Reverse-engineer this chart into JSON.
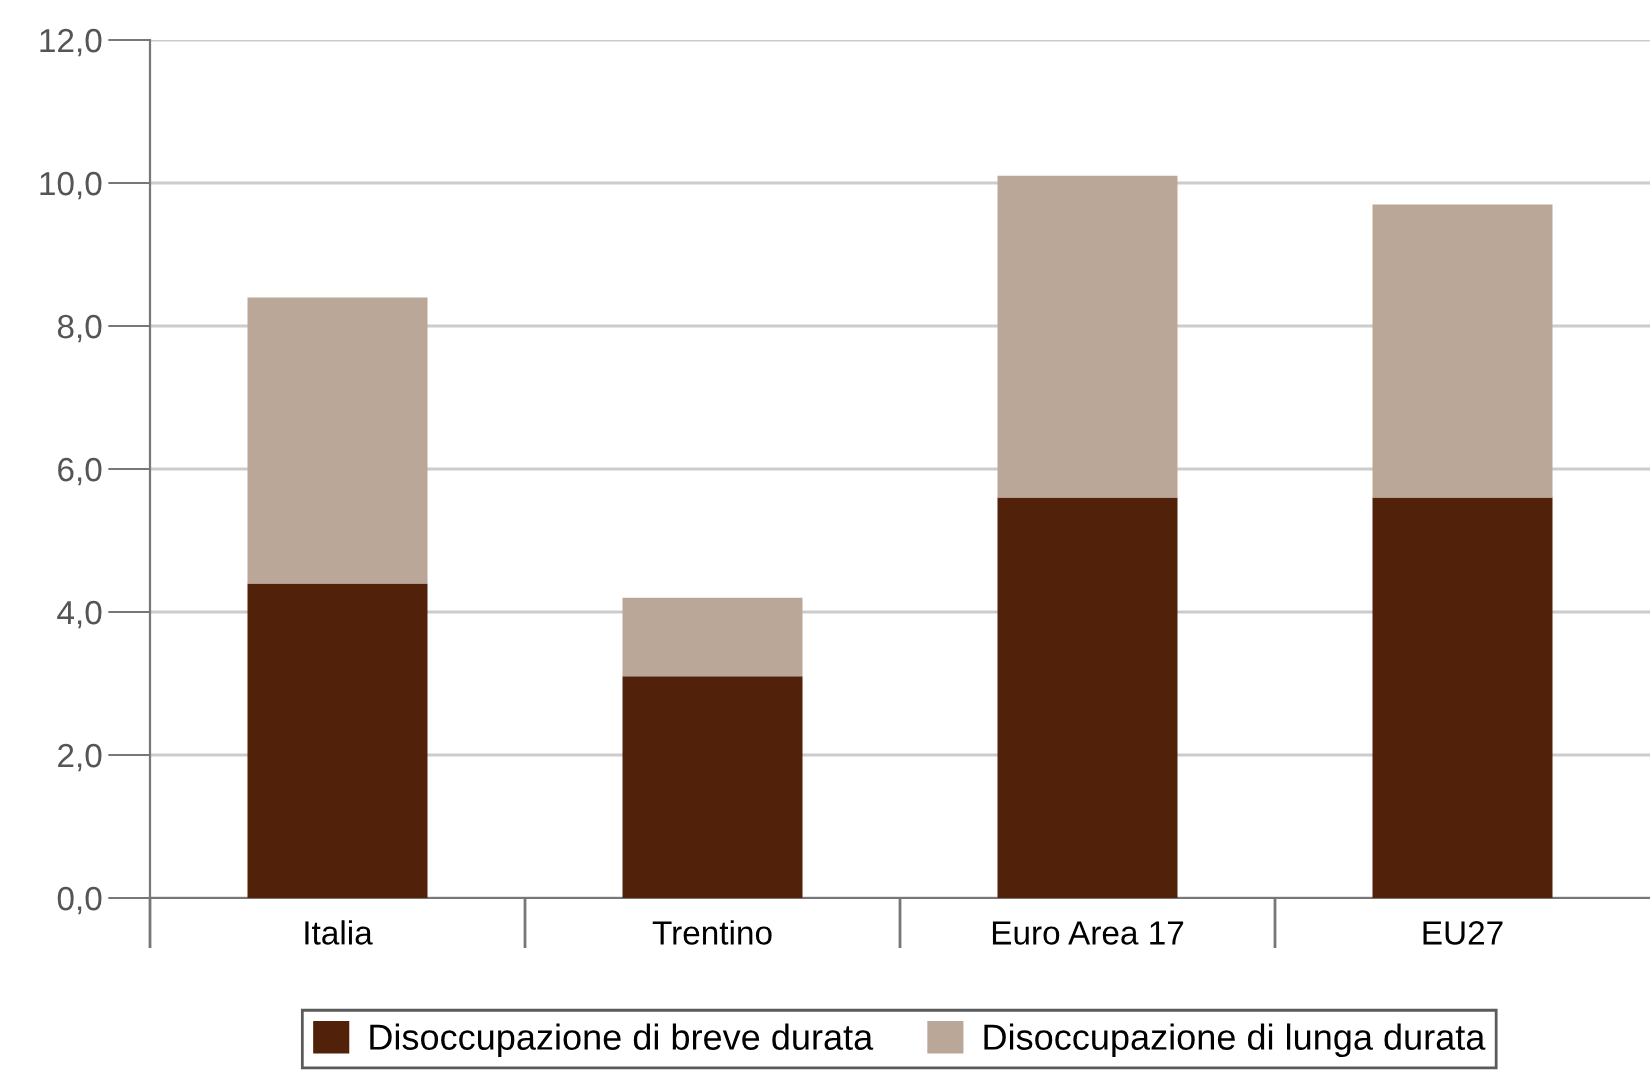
{
  "chart_data": {
    "type": "bar",
    "stacked": true,
    "categories": [
      "Italia",
      "Trentino",
      "Euro Area 17",
      "EU27"
    ],
    "series": [
      {
        "name": "Disoccupazione di breve durata",
        "color": "#52210a",
        "values": [
          4.4,
          3.1,
          5.6,
          5.6
        ]
      },
      {
        "name": "Disoccupazione di lunga durata",
        "color": "#baa798",
        "values": [
          4.0,
          1.1,
          4.5,
          4.1
        ]
      }
    ],
    "ylim": [
      0,
      12
    ],
    "yticks": [
      {
        "value": 0,
        "label": "0,0"
      },
      {
        "value": 2,
        "label": "2,0"
      },
      {
        "value": 4,
        "label": "4,0"
      },
      {
        "value": 6,
        "label": "6,0"
      },
      {
        "value": 8,
        "label": "8,0"
      },
      {
        "value": 10,
        "label": "10,0"
      },
      {
        "value": 12,
        "label": "12,0"
      }
    ],
    "grid": "y",
    "legend": "bottom"
  }
}
